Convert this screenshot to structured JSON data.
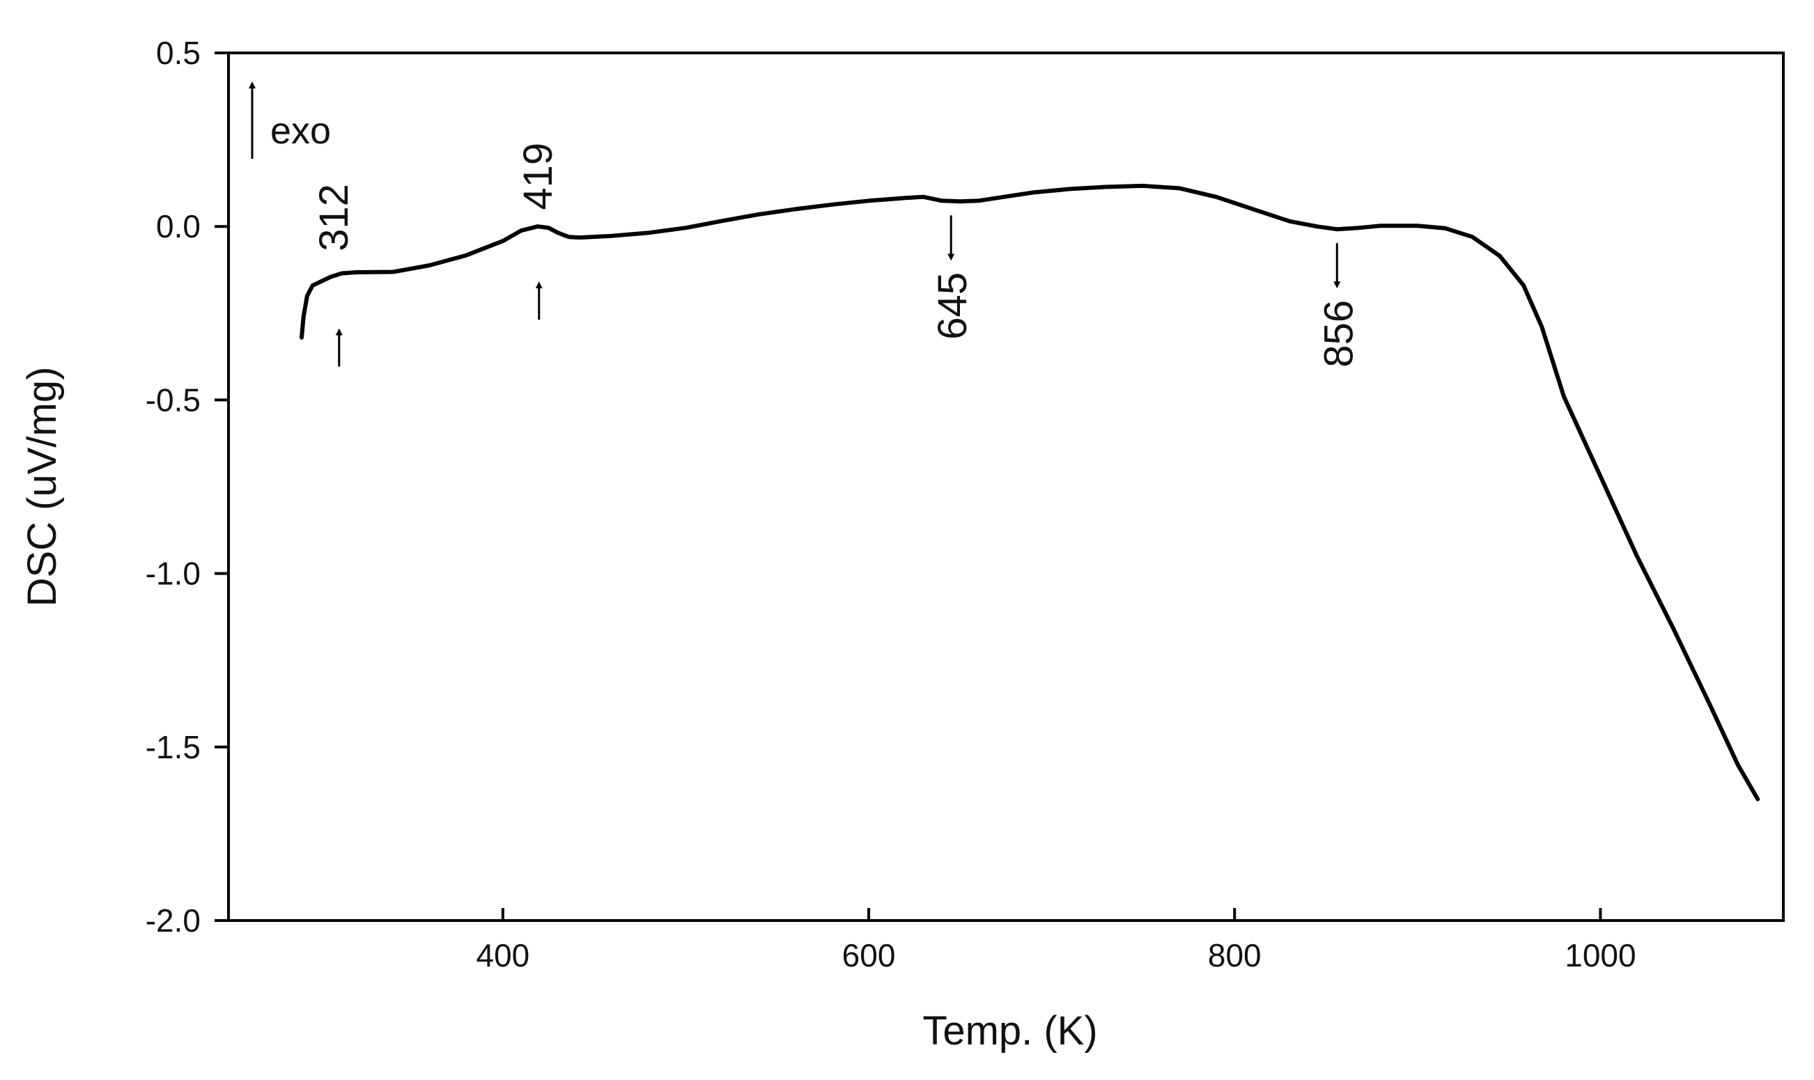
{
  "chart_data": {
    "type": "line",
    "title": "",
    "xlabel": "Temp. (K)",
    "ylabel": "DSC (uV/mg)",
    "xlim": [
      250,
      1100
    ],
    "ylim": [
      -2.0,
      0.5
    ],
    "x_ticks": [
      400,
      600,
      800,
      1000
    ],
    "x_tick_labels": [
      "400",
      "600",
      "800",
      "1000"
    ],
    "y_ticks": [
      0.5,
      0.0,
      -0.5,
      -1.0,
      -1.5,
      -2.0
    ],
    "y_tick_labels": [
      "0.5",
      "0.0",
      "-0.5",
      "-1.0",
      "-1.5",
      "-2.0"
    ],
    "grid": false,
    "series": [
      {
        "name": "DSC",
        "color": "#000000",
        "points": [
          [
            290,
            -0.32
          ],
          [
            291,
            -0.26
          ],
          [
            293,
            -0.2
          ],
          [
            296,
            -0.17
          ],
          [
            300,
            -0.16
          ],
          [
            306,
            -0.145
          ],
          [
            312,
            -0.135
          ],
          [
            320,
            -0.132
          ],
          [
            340,
            -0.131
          ],
          [
            360,
            -0.112
          ],
          [
            380,
            -0.083
          ],
          [
            400,
            -0.042
          ],
          [
            410,
            -0.012
          ],
          [
            419,
            0.0
          ],
          [
            425,
            -0.004
          ],
          [
            430,
            -0.018
          ],
          [
            436,
            -0.03
          ],
          [
            442,
            -0.032
          ],
          [
            460,
            -0.027
          ],
          [
            480,
            -0.018
          ],
          [
            500,
            -0.004
          ],
          [
            520,
            0.016
          ],
          [
            540,
            0.035
          ],
          [
            560,
            0.05
          ],
          [
            580,
            0.063
          ],
          [
            600,
            0.074
          ],
          [
            620,
            0.082
          ],
          [
            630,
            0.085
          ],
          [
            640,
            0.074
          ],
          [
            650,
            0.072
          ],
          [
            660,
            0.074
          ],
          [
            670,
            0.082
          ],
          [
            690,
            0.098
          ],
          [
            710,
            0.108
          ],
          [
            730,
            0.114
          ],
          [
            750,
            0.117
          ],
          [
            770,
            0.11
          ],
          [
            790,
            0.085
          ],
          [
            810,
            0.05
          ],
          [
            830,
            0.015
          ],
          [
            845,
            0.0
          ],
          [
            856,
            -0.008
          ],
          [
            868,
            -0.004
          ],
          [
            880,
            0.002
          ],
          [
            900,
            0.002
          ],
          [
            915,
            -0.005
          ],
          [
            930,
            -0.03
          ],
          [
            945,
            -0.085
          ],
          [
            958,
            -0.17
          ],
          [
            968,
            -0.29
          ],
          [
            980,
            -0.49
          ],
          [
            1000,
            -0.72
          ],
          [
            1020,
            -0.95
          ],
          [
            1040,
            -1.16
          ],
          [
            1060,
            -1.38
          ],
          [
            1075,
            -1.55
          ],
          [
            1086,
            -1.65
          ]
        ]
      }
    ],
    "annotations": [
      {
        "label": "312",
        "x": 312,
        "y": -0.135,
        "arrow": "up"
      },
      {
        "label": "419",
        "x": 419,
        "y": 0.0,
        "arrow": "up"
      },
      {
        "label": "645",
        "x": 645,
        "y": 0.072,
        "arrow": "down"
      },
      {
        "label": "856",
        "x": 856,
        "y": -0.008,
        "arrow": "down"
      }
    ],
    "exo_indicator": {
      "label": "exo",
      "direction": "up"
    }
  }
}
